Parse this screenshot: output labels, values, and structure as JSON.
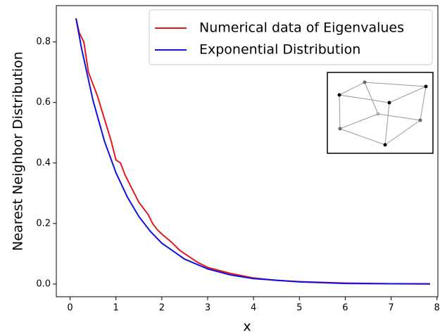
{
  "chart_data": {
    "type": "line",
    "xlabel": "x",
    "ylabel": "Nearest Neighbor Distribution",
    "xlim": [
      -0.3,
      8.02
    ],
    "ylim": [
      -0.042,
      0.92
    ],
    "xticks": [
      0,
      1,
      2,
      3,
      4,
      5,
      6,
      7,
      8
    ],
    "yticks": [
      {
        "value": 0,
        "label": "0.0"
      },
      0.2,
      0.4,
      0.6,
      0.8
    ],
    "grid": false,
    "legend": "upper right",
    "series": [
      {
        "name": "Numerical data of Eigenvalues",
        "color": "#e31a1c",
        "x": [
          0.13,
          0.2,
          0.3,
          0.4,
          0.5,
          0.6,
          0.7,
          0.8,
          0.9,
          1.0,
          1.1,
          1.2,
          1.3,
          1.4,
          1.5,
          1.6,
          1.7,
          1.8,
          1.9,
          2.0,
          2.2,
          2.4,
          2.6,
          2.8,
          3.0,
          3.5,
          4.0,
          4.5,
          5.0,
          6.0,
          7.0,
          7.85
        ],
        "values": [
          0.878,
          0.83,
          0.8,
          0.7,
          0.66,
          0.62,
          0.57,
          0.52,
          0.47,
          0.41,
          0.4,
          0.36,
          0.33,
          0.3,
          0.27,
          0.25,
          0.23,
          0.2,
          0.18,
          0.165,
          0.14,
          0.11,
          0.09,
          0.07,
          0.055,
          0.035,
          0.02,
          0.012,
          0.008,
          0.003,
          0.001,
          0.0005
        ]
      },
      {
        "name": "Exponential Distribution",
        "color": "#1010e0",
        "x": [
          0.13,
          0.25,
          0.5,
          0.75,
          1,
          1.25,
          1.5,
          1.75,
          2,
          2.5,
          3,
          3.5,
          4,
          5,
          6,
          7,
          7.85
        ],
        "values": [
          0.878,
          0.779,
          0.607,
          0.472,
          0.368,
          0.287,
          0.223,
          0.174,
          0.135,
          0.082,
          0.05,
          0.03,
          0.018,
          0.007,
          0.002,
          0.001,
          0.0004
        ]
      }
    ]
  }
}
